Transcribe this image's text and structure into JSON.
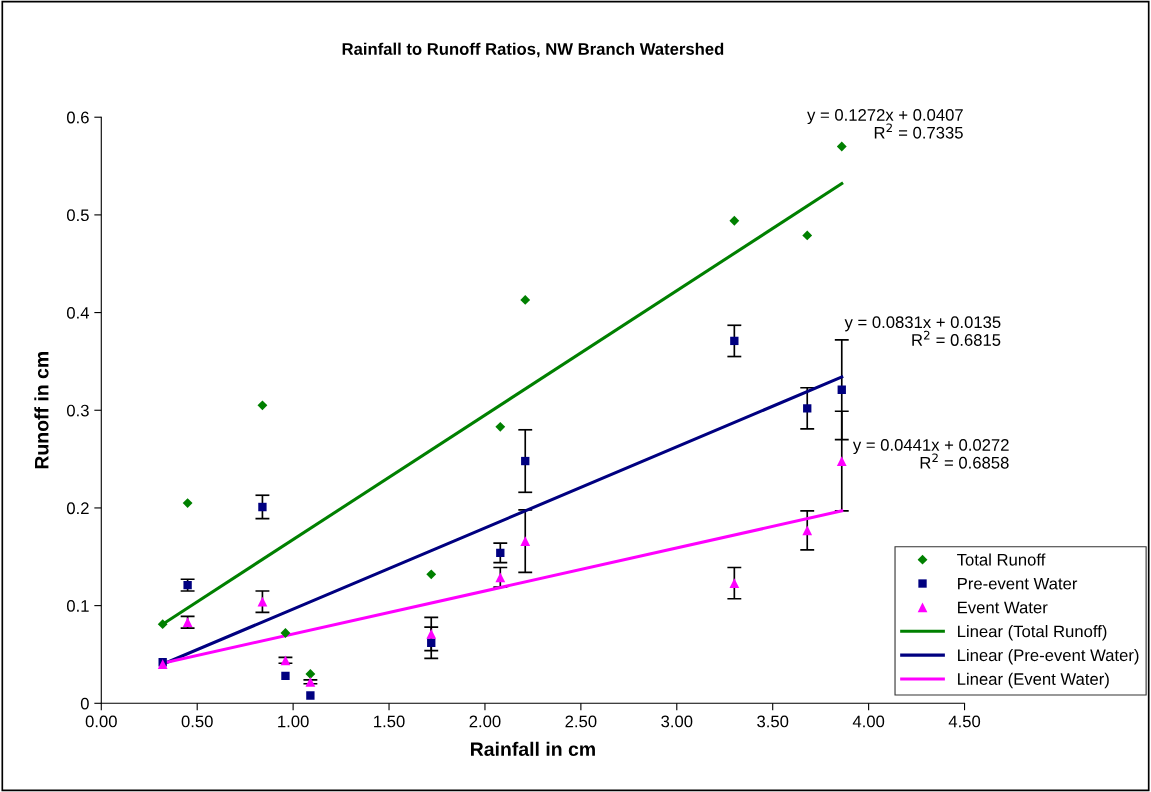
{
  "chart_data": {
    "type": "scatter",
    "title": "Rainfall to Runoff Ratios, NW Branch Watershed",
    "xlabel": "Rainfall in cm",
    "ylabel": "Runoff in cm",
    "xlim": [
      0,
      4.5
    ],
    "xticks": [
      {
        "value": 0,
        "label": "0.00"
      },
      {
        "value": 0.5,
        "label": "0.50"
      },
      {
        "value": 1,
        "label": "1.00"
      },
      {
        "value": 1.5,
        "label": "1.50"
      },
      {
        "value": 2,
        "label": "2.00"
      },
      {
        "value": 2.5,
        "label": "2.50"
      },
      {
        "value": 3,
        "label": "3.00"
      },
      {
        "value": 3.5,
        "label": "3.50"
      },
      {
        "value": 4,
        "label": "4.00"
      },
      {
        "value": 4.5,
        "label": "4.50"
      }
    ],
    "ylim": [
      0,
      0.6
    ],
    "yticks": [
      0,
      0.1,
      0.2,
      0.3,
      0.4,
      0.5,
      0.6
    ],
    "grid": false,
    "legend": "lower right",
    "series": [
      {
        "name": "Total Runoff",
        "marker": "diamond",
        "color": "#008000",
        "x": [
          0.32,
          0.45,
          0.84,
          0.96,
          1.09,
          1.72,
          2.08,
          2.21,
          3.3,
          3.68,
          3.86
        ],
        "values": [
          0.081,
          0.205,
          0.305,
          0.072,
          0.03,
          0.132,
          0.283,
          0.413,
          0.494,
          0.479,
          0.57
        ]
      },
      {
        "name": "Pre-event Water",
        "marker": "square",
        "color": "#000080",
        "x": [
          0.32,
          0.45,
          0.84,
          0.96,
          1.09,
          1.72,
          2.08,
          2.21,
          3.3,
          3.68,
          3.86
        ],
        "values": [
          0.042,
          0.121,
          0.201,
          0.028,
          0.008,
          0.062,
          0.154,
          0.248,
          0.371,
          0.302,
          0.321
        ],
        "errors": [
          null,
          0.006,
          0.012,
          null,
          null,
          0.016,
          0.01,
          0.032,
          0.016,
          0.021,
          0.051
        ]
      },
      {
        "name": "Event Water",
        "marker": "triangle",
        "color": "#ff00ff",
        "x": [
          0.32,
          0.45,
          0.84,
          0.96,
          1.09,
          1.72,
          2.08,
          2.21,
          3.3,
          3.68,
          3.86
        ],
        "values": [
          0.04,
          0.083,
          0.104,
          0.044,
          0.022,
          0.071,
          0.129,
          0.166,
          0.123,
          0.177,
          0.248
        ],
        "errors": [
          null,
          0.006,
          0.011,
          0.003,
          0.002,
          0.017,
          0.01,
          0.032,
          0.016,
          0.02,
          0.051
        ]
      },
      {
        "name": "Linear (Total Runoff)",
        "type": "line",
        "marker": "none",
        "color": "#008000",
        "x": [
          0.32,
          3.86
        ],
        "values": [
          0.081,
          0.532
        ]
      },
      {
        "name": "Linear (Pre-event Water)",
        "type": "line",
        "marker": "none",
        "color": "#000080",
        "x": [
          0.32,
          3.86
        ],
        "values": [
          0.04,
          0.334
        ]
      },
      {
        "name": "Linear (Event Water)",
        "type": "line",
        "marker": "none",
        "color": "#ff00ff",
        "x": [
          0.32,
          3.86
        ],
        "values": [
          0.041,
          0.197
        ]
      }
    ],
    "annotations": [
      "y = 0.1272x + 0.0407\nR$^{2}$ = 0.7335",
      "y = 0.0831x + 0.0135\nR$^{2}$ = 0.6815",
      "y = 0.0441x + 0.0272\nR$^{2}$ = 0.6858"
    ]
  }
}
